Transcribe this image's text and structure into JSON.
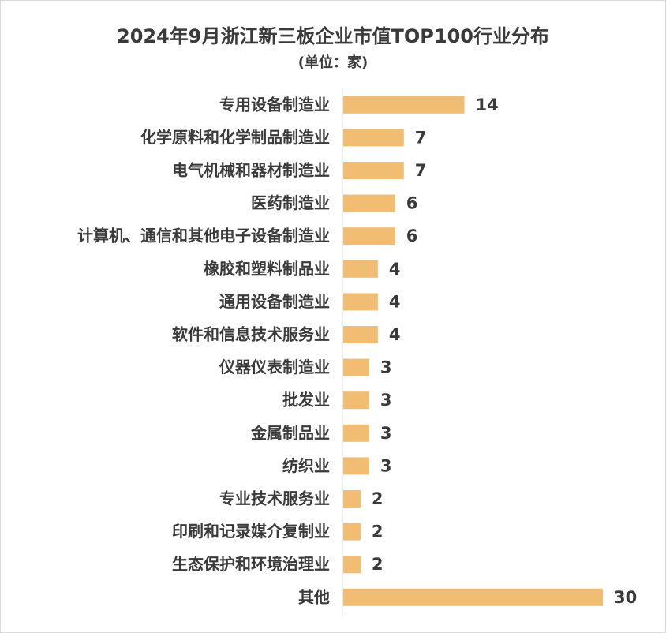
{
  "chart_data": {
    "type": "bar",
    "orientation": "horizontal",
    "title": "2024年9月浙江新三板企业市值TOP100行业分布",
    "subtitle": "(单位：家)",
    "categories": [
      "专用设备制造业",
      "化学原料和化学制品制造业",
      "电气机械和器材制造业",
      "医药制造业",
      "计算机、通信和其他电子设备制造业",
      "橡胶和塑料制品业",
      "通用设备制造业",
      "软件和信息技术服务业",
      "仪器仪表制造业",
      "批发业",
      "金属制品业",
      "纺织业",
      "专业技术服务业",
      "印刷和记录媒介复制业",
      "生态保护和环境治理业",
      "其他"
    ],
    "values": [
      14,
      7,
      7,
      6,
      6,
      4,
      4,
      4,
      3,
      3,
      3,
      3,
      2,
      2,
      2,
      30
    ],
    "color": "#f0bd72"
  }
}
